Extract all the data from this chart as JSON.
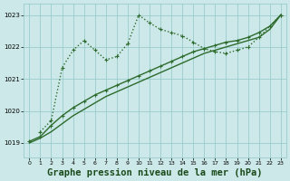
{
  "background_color": "#cce8e8",
  "grid_color": "#99cccc",
  "line_color": "#2d6b2d",
  "title": "Graphe pression niveau de la mer (hPa)",
  "title_fontsize": 7.5,
  "ylim": [
    1018.55,
    1023.35
  ],
  "xlim": [
    -0.5,
    23.5
  ],
  "yticks": [
    1019,
    1020,
    1021,
    1022,
    1023
  ],
  "xticks": [
    0,
    1,
    2,
    3,
    4,
    5,
    6,
    7,
    8,
    9,
    10,
    11,
    12,
    13,
    14,
    15,
    16,
    17,
    18,
    19,
    20,
    21,
    22,
    23
  ],
  "series1_no_marker": {
    "x": [
      0,
      1,
      2,
      3,
      4,
      5,
      6,
      7,
      8,
      9,
      10,
      11,
      12,
      13,
      14,
      15,
      16,
      17,
      18,
      19,
      20,
      21,
      22,
      23
    ],
    "y": [
      1019.0,
      1019.15,
      1019.35,
      1019.6,
      1019.85,
      1020.05,
      1020.25,
      1020.45,
      1020.6,
      1020.75,
      1020.9,
      1021.05,
      1021.2,
      1021.35,
      1021.5,
      1021.65,
      1021.8,
      1021.9,
      1022.0,
      1022.1,
      1022.2,
      1022.3,
      1022.55,
      1023.0
    ],
    "linewidth": 1.0
  },
  "series2_with_marker": {
    "x": [
      0,
      1,
      2,
      3,
      4,
      5,
      6,
      7,
      8,
      9,
      10,
      11,
      12,
      13,
      14,
      15,
      16,
      17,
      18,
      19,
      20,
      21,
      22,
      23
    ],
    "y": [
      1019.05,
      1019.2,
      1019.55,
      1019.85,
      1020.1,
      1020.3,
      1020.5,
      1020.65,
      1020.8,
      1020.95,
      1021.1,
      1021.25,
      1021.4,
      1021.55,
      1021.7,
      1021.85,
      1021.95,
      1022.05,
      1022.15,
      1022.2,
      1022.3,
      1022.45,
      1022.65,
      1023.0
    ],
    "linewidth": 1.0
  },
  "series3_dotted_marker": {
    "x": [
      1,
      2,
      3,
      4,
      5,
      6,
      7,
      8,
      9,
      10,
      11,
      12,
      13,
      14,
      15,
      16,
      17,
      18,
      19,
      20,
      21,
      22,
      23
    ],
    "y": [
      1019.35,
      1019.7,
      1021.35,
      1021.9,
      1022.2,
      1021.9,
      1021.6,
      1021.7,
      1022.1,
      1023.0,
      1022.75,
      1022.55,
      1022.45,
      1022.35,
      1022.15,
      1021.95,
      1021.85,
      1021.8,
      1021.9,
      1022.0,
      1022.3,
      1022.65,
      1023.0
    ],
    "linewidth": 1.0
  }
}
